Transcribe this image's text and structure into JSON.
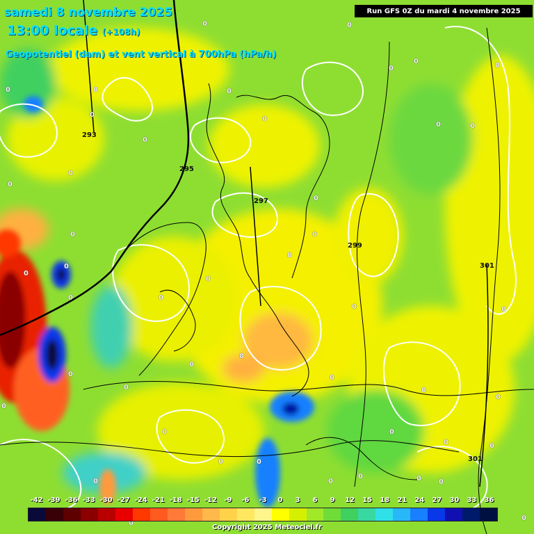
{
  "header": {
    "date": "samedi 8 novembre 2025",
    "time": "13:00 locale",
    "lead": "(+108h)",
    "parameter": "Geopotentiel (dam) et vent vertical à 700hPa (hPa/h)"
  },
  "run_info": "Run GFS 0Z du mardi 4 novembre 2025",
  "legend": {
    "values": [
      "-42",
      "-39",
      "-36",
      "-33",
      "-30",
      "-27",
      "-24",
      "-21",
      "-18",
      "-15",
      "-12",
      "-9",
      "-6",
      "-3",
      "0",
      "3",
      "6",
      "9",
      "12",
      "15",
      "18",
      "21",
      "24",
      "27",
      "30",
      "33",
      "36"
    ],
    "colors": [
      "#0a0a3a",
      "#3a0008",
      "#5e0000",
      "#8a0000",
      "#b80000",
      "#e80000",
      "#ff3800",
      "#ff5a20",
      "#ff7a38",
      "#ff9a3c",
      "#ffb84a",
      "#ffd24a",
      "#ffe860",
      "#fff58a",
      "#ffff00",
      "#d4f000",
      "#a0e828",
      "#70dc38",
      "#40d060",
      "#38d8a0",
      "#30e0e8",
      "#28b8f8",
      "#1880ff",
      "#0838e8",
      "#1010b0",
      "#001a6a",
      "#001040"
    ]
  },
  "copyright": "Copyright 2025 Meteociel.fr",
  "contours": {
    "labels": [
      "293",
      "295",
      "297",
      "299",
      "301",
      "301"
    ]
  },
  "zero_labels": [
    "0",
    "0",
    "0",
    "0",
    "0",
    "0",
    "0",
    "0",
    "0",
    "0",
    "0",
    "0",
    "0",
    "0",
    "0",
    "0",
    "0",
    "0",
    "0",
    "0",
    "0",
    "0",
    "0",
    "0",
    "0",
    "0",
    "0",
    "0",
    "0",
    "0",
    "0",
    "0",
    "0",
    "0",
    "0",
    "0",
    "0",
    "0",
    "0",
    "0",
    "0",
    "0",
    "0",
    "0",
    "0",
    "0",
    "0",
    "0",
    "0",
    "0",
    "0",
    "0",
    "0",
    "0",
    "0",
    "0",
    "0",
    "0",
    "0",
    "0"
  ],
  "icons": [
    "weather-map"
  ]
}
